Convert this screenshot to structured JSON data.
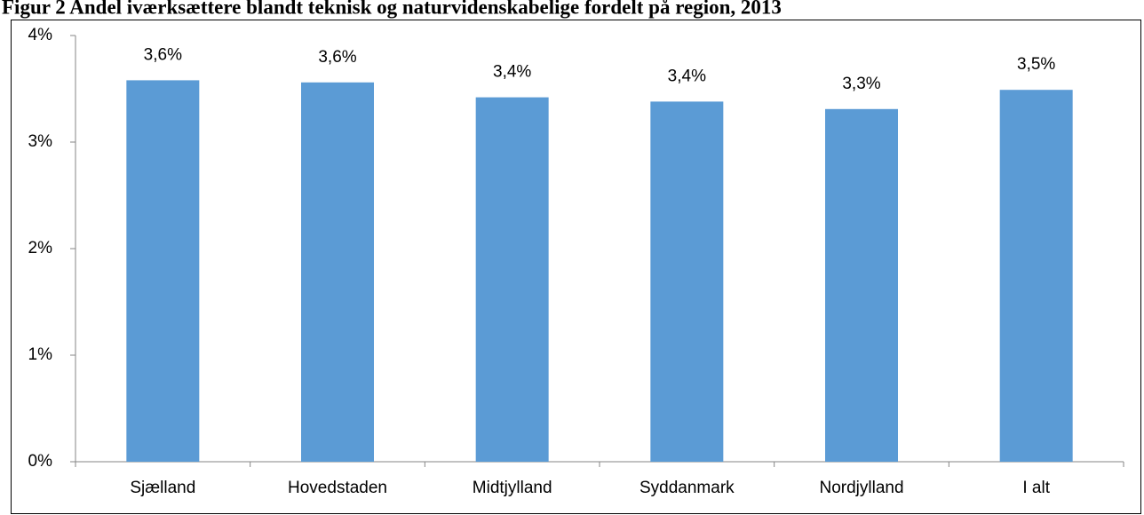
{
  "chart_data": {
    "type": "bar",
    "title": "Figur 2 Andel iværksættere blandt teknisk og naturvidenskabelige fordelt på region, 2013",
    "categories": [
      "Sjælland",
      "Hovedstaden",
      "Midtjylland",
      "Syddanmark",
      "Nordjylland",
      "I alt"
    ],
    "values": [
      3.58,
      3.56,
      3.42,
      3.38,
      3.31,
      3.49
    ],
    "value_labels": [
      "3,6%",
      "3,6%",
      "3,4%",
      "3,4%",
      "3,3%",
      "3,5%"
    ],
    "color": "#5b9bd5",
    "ylim": [
      0,
      4
    ],
    "yticks": [
      {
        "value": 0,
        "label": "0%"
      },
      {
        "value": 1,
        "label": "1%"
      },
      {
        "value": 2,
        "label": "2%"
      },
      {
        "value": 3,
        "label": "3%"
      },
      {
        "value": 4,
        "label": "4%"
      }
    ],
    "grid": false
  }
}
